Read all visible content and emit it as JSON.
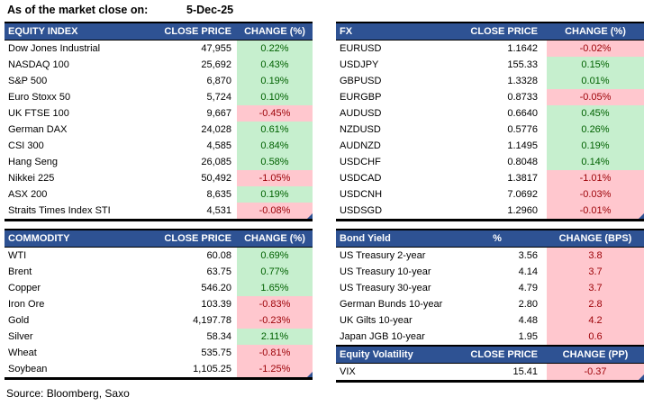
{
  "meta": {
    "as_of_label": "As of the market close on:",
    "as_of_date": "5-Dec-25",
    "source": "Source: Bloomberg, Saxo"
  },
  "colors": {
    "header_bg": "#2E5293",
    "positive_bg": "#C6EFCE",
    "positive_text": "#006100",
    "negative_bg": "#FFC7CE",
    "negative_text": "#9C0006",
    "corner_marker": "#2E5293"
  },
  "tables": {
    "equity": {
      "title": "EQUITY INDEX",
      "col2": "CLOSE PRICE",
      "col3": "CHANGE (%)",
      "rows": [
        {
          "name": "Dow Jones Industrial",
          "close": "47,955",
          "change": "0.22%",
          "highlight": "green"
        },
        {
          "name": "NASDAQ 100",
          "close": "25,692",
          "change": "0.43%",
          "highlight": "green"
        },
        {
          "name": "S&P 500",
          "close": "6,870",
          "change": "0.19%",
          "highlight": "green"
        },
        {
          "name": "Euro Stoxx 50",
          "close": "5,724",
          "change": "0.10%",
          "highlight": "green"
        },
        {
          "name": "UK FTSE 100",
          "close": "9,667",
          "change": "-0.45%",
          "highlight": "red"
        },
        {
          "name": "German DAX",
          "close": "24,028",
          "change": "0.61%",
          "highlight": "green"
        },
        {
          "name": "CSI 300",
          "close": "4,585",
          "change": "0.84%",
          "highlight": "green"
        },
        {
          "name": "Hang Seng",
          "close": "26,085",
          "change": "0.58%",
          "highlight": "green"
        },
        {
          "name": "Nikkei 225",
          "close": "50,492",
          "change": "-1.05%",
          "highlight": "red"
        },
        {
          "name": "ASX 200",
          "close": "8,635",
          "change": "0.19%",
          "highlight": "green"
        },
        {
          "name": "Straits Times Index STI",
          "close": "4,531",
          "change": "-0.08%",
          "highlight": "red"
        }
      ]
    },
    "fx": {
      "title": "FX",
      "col2": "CLOSE PRICE",
      "col3": "CHANGE (%)",
      "rows": [
        {
          "name": "EURUSD",
          "close": "1.1642",
          "change": "-0.02%",
          "highlight": "red"
        },
        {
          "name": "USDJPY",
          "close": "155.33",
          "change": "0.15%",
          "highlight": "green"
        },
        {
          "name": "GBPUSD",
          "close": "1.3328",
          "change": "0.01%",
          "highlight": "green"
        },
        {
          "name": "EURGBP",
          "close": "0.8733",
          "change": "-0.05%",
          "highlight": "red"
        },
        {
          "name": "AUDUSD",
          "close": "0.6640",
          "change": "0.45%",
          "highlight": "green"
        },
        {
          "name": "NZDUSD",
          "close": "0.5776",
          "change": "0.26%",
          "highlight": "green"
        },
        {
          "name": "AUDNZD",
          "close": "1.1495",
          "change": "0.19%",
          "highlight": "green"
        },
        {
          "name": "USDCHF",
          "close": "0.8048",
          "change": "0.14%",
          "highlight": "green"
        },
        {
          "name": "USDCAD",
          "close": "1.3817",
          "change": "-1.01%",
          "highlight": "red"
        },
        {
          "name": "USDCNH",
          "close": "7.0692",
          "change": "-0.03%",
          "highlight": "red"
        },
        {
          "name": "USDSGD",
          "close": "1.2960",
          "change": "-0.01%",
          "highlight": "red"
        }
      ]
    },
    "commodity": {
      "title": "COMMODITY",
      "col2": "CLOSE PRICE",
      "col3": "CHANGE (%)",
      "rows": [
        {
          "name": "WTI",
          "close": "60.08",
          "change": "0.69%",
          "highlight": "green"
        },
        {
          "name": "Brent",
          "close": "63.75",
          "change": "0.77%",
          "highlight": "green"
        },
        {
          "name": "Copper",
          "close": "546.20",
          "change": "1.65%",
          "highlight": "green"
        },
        {
          "name": "Iron Ore",
          "close": "103.39",
          "change": "-0.83%",
          "highlight": "red"
        },
        {
          "name": "Gold",
          "close": "4,197.78",
          "change": "-0.23%",
          "highlight": "red"
        },
        {
          "name": "Silver",
          "close": "58.34",
          "change": "2.11%",
          "highlight": "green"
        },
        {
          "name": "Wheat",
          "close": "535.75",
          "change": "-0.81%",
          "highlight": "red"
        },
        {
          "name": "Soybean",
          "close": "1,105.25",
          "change": "-1.25%",
          "highlight": "red"
        }
      ]
    },
    "bond": {
      "title": "Bond Yield",
      "col2": "%",
      "col3": "CHANGE (BPS)",
      "rows": [
        {
          "name": "US Treasury 2-year",
          "close": "3.56",
          "change": "3.8",
          "highlight": "red"
        },
        {
          "name": "US Treasury 10-year",
          "close": "4.14",
          "change": "3.7",
          "highlight": "red"
        },
        {
          "name": "US Treasury 30-year",
          "close": "4.79",
          "change": "3.7",
          "highlight": "red"
        },
        {
          "name": "German Bunds 10-year",
          "close": "2.80",
          "change": "2.8",
          "highlight": "red"
        },
        {
          "name": "UK Gilts 10-year",
          "close": "4.48",
          "change": "4.2",
          "highlight": "red"
        },
        {
          "name": "Japan JGB 10-year",
          "close": "1.95",
          "change": "0.6",
          "highlight": "red"
        }
      ]
    },
    "volatility": {
      "title": "Equity Volatility",
      "col2": "CLOSE PRICE",
      "col3": "CHANGE (PP)",
      "rows": [
        {
          "name": "VIX",
          "close": "15.41",
          "change": "-0.37",
          "highlight": "red"
        }
      ]
    }
  }
}
